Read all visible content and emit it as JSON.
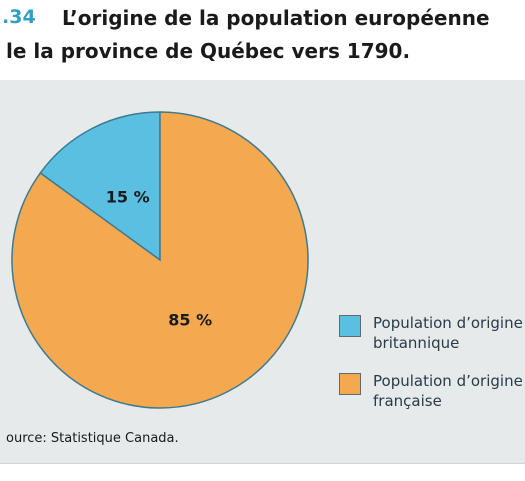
{
  "header": {
    "figure_number": ".34",
    "title_line1": "L’origine de la population européenne",
    "title_line2": "le la province de Québec vers 1790."
  },
  "chart_data": {
    "type": "pie",
    "title": "L’origine de la population européenne de la province de Québec vers 1790.",
    "slices": [
      {
        "label": "Population d’origine britannique",
        "value": 15,
        "display": "15 %",
        "color": "#5bbfe2"
      },
      {
        "label": "Population d’origine française",
        "value": 85,
        "display": "85 %",
        "color": "#f4a950"
      }
    ],
    "legend_placement": "right"
  },
  "source": "ource: Statistique Canada."
}
